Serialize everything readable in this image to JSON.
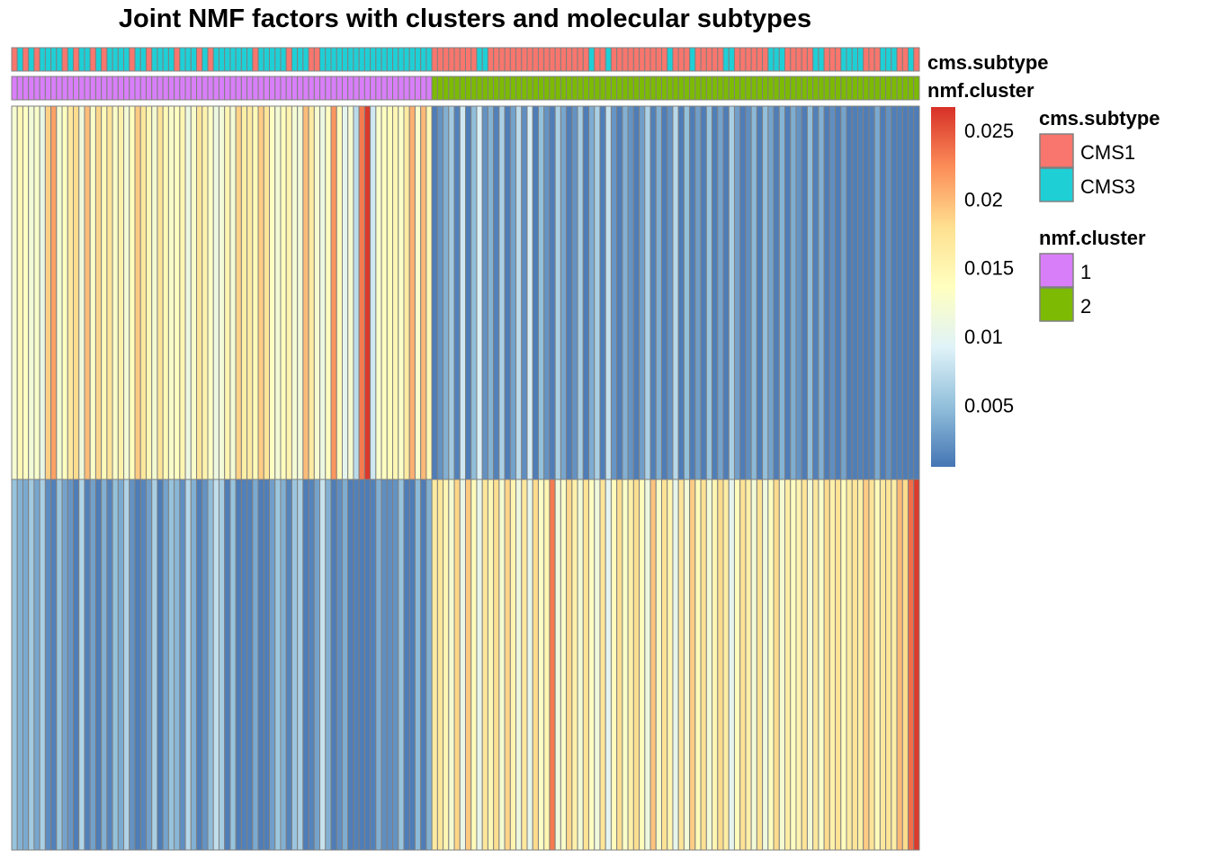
{
  "chart_data": {
    "type": "heatmap",
    "title": "Joint NMF factors with clusters and molecular subtypes",
    "n_samples": 162,
    "n_factors": 2,
    "annotation_tracks": [
      {
        "name": "cms.subtype",
        "levels": [
          "CMS1",
          "CMS3"
        ],
        "colors": [
          "#f8766d",
          "#1fcfd6"
        ]
      },
      {
        "name": "nmf.cluster",
        "levels": [
          "1",
          "2"
        ],
        "colors": [
          "#d97ef9",
          "#7cba04"
        ]
      }
    ],
    "cms_subtype": [
      "CMS1",
      "CMS3",
      "CMS1",
      "CMS3",
      "CMS1",
      "CMS3",
      "CMS3",
      "CMS3",
      "CMS3",
      "CMS1",
      "CMS3",
      "CMS1",
      "CMS3",
      "CMS3",
      "CMS1",
      "CMS3",
      "CMS1",
      "CMS3",
      "CMS3",
      "CMS3",
      "CMS3",
      "CMS1",
      "CMS3",
      "CMS3",
      "CMS1",
      "CMS3",
      "CMS3",
      "CMS3",
      "CMS3",
      "CMS1",
      "CMS3",
      "CMS3",
      "CMS3",
      "CMS1",
      "CMS3",
      "CMS1",
      "CMS3",
      "CMS3",
      "CMS3",
      "CMS3",
      "CMS3",
      "CMS3",
      "CMS3",
      "CMS1",
      "CMS3",
      "CMS3",
      "CMS3",
      "CMS3",
      "CMS3",
      "CMS1",
      "CMS3",
      "CMS3",
      "CMS3",
      "CMS1",
      "CMS1",
      "CMS3",
      "CMS3",
      "CMS3",
      "CMS3",
      "CMS3",
      "CMS3",
      "CMS3",
      "CMS3",
      "CMS3",
      "CMS3",
      "CMS3",
      "CMS3",
      "CMS3",
      "CMS3",
      "CMS3",
      "CMS3",
      "CMS3",
      "CMS3",
      "CMS3",
      "CMS3",
      "CMS1",
      "CMS1",
      "CMS1",
      "CMS1",
      "CMS1",
      "CMS1",
      "CMS1",
      "CMS1",
      "CMS3",
      "CMS3",
      "CMS1",
      "CMS1",
      "CMS1",
      "CMS1",
      "CMS1",
      "CMS1",
      "CMS1",
      "CMS1",
      "CMS1",
      "CMS1",
      "CMS1",
      "CMS1",
      "CMS1",
      "CMS1",
      "CMS1",
      "CMS1",
      "CMS1",
      "CMS1",
      "CMS3",
      "CMS1",
      "CMS1",
      "CMS3",
      "CMS1",
      "CMS1",
      "CMS1",
      "CMS1",
      "CMS1",
      "CMS1",
      "CMS1",
      "CMS1",
      "CMS1",
      "CMS1",
      "CMS3",
      "CMS1",
      "CMS1",
      "CMS1",
      "CMS3",
      "CMS1",
      "CMS1",
      "CMS1",
      "CMS1",
      "CMS1",
      "CMS3",
      "CMS3",
      "CMS1",
      "CMS1",
      "CMS1",
      "CMS1",
      "CMS1",
      "CMS1",
      "CMS3",
      "CMS3",
      "CMS3",
      "CMS1",
      "CMS1",
      "CMS1",
      "CMS1",
      "CMS1",
      "CMS3",
      "CMS3",
      "CMS1",
      "CMS1",
      "CMS1",
      "CMS3",
      "CMS3",
      "CMS3",
      "CMS3",
      "CMS1",
      "CMS1",
      "CMS1",
      "CMS3",
      "CMS3",
      "CMS3",
      "CMS1",
      "CMS1",
      "CMS3",
      "CMS1"
    ],
    "nmf_cluster": [
      "1",
      "1",
      "1",
      "1",
      "1",
      "1",
      "1",
      "1",
      "1",
      "1",
      "1",
      "1",
      "1",
      "1",
      "1",
      "1",
      "1",
      "1",
      "1",
      "1",
      "1",
      "1",
      "1",
      "1",
      "1",
      "1",
      "1",
      "1",
      "1",
      "1",
      "1",
      "1",
      "1",
      "1",
      "1",
      "1",
      "1",
      "1",
      "1",
      "1",
      "1",
      "1",
      "1",
      "1",
      "1",
      "1",
      "1",
      "1",
      "1",
      "1",
      "1",
      "1",
      "1",
      "1",
      "1",
      "1",
      "1",
      "1",
      "1",
      "1",
      "1",
      "1",
      "1",
      "1",
      "1",
      "1",
      "1",
      "1",
      "1",
      "1",
      "1",
      "1",
      "1",
      "1",
      "1",
      "2",
      "2",
      "2",
      "2",
      "2",
      "2",
      "2",
      "2",
      "2",
      "2",
      "2",
      "2",
      "2",
      "2",
      "2",
      "2",
      "2",
      "2",
      "2",
      "2",
      "2",
      "2",
      "2",
      "2",
      "2",
      "2",
      "2",
      "2",
      "2",
      "2",
      "2",
      "2",
      "2",
      "2",
      "2",
      "2",
      "2",
      "2",
      "2",
      "2",
      "2",
      "2",
      "2",
      "2",
      "2",
      "2",
      "2",
      "2",
      "2",
      "2",
      "2",
      "2",
      "2",
      "2",
      "2",
      "2",
      "2",
      "2",
      "2",
      "2",
      "2",
      "2",
      "2",
      "2",
      "2",
      "2",
      "2",
      "2",
      "2",
      "2",
      "2",
      "2",
      "2",
      "2",
      "2",
      "2",
      "2",
      "2",
      "2",
      "2",
      "2",
      "2",
      "2",
      "2",
      "2",
      "2",
      "2"
    ],
    "factor_values": [
      [
        0.0123,
        0.0145,
        0.0135,
        0.0118,
        0.0128,
        0.0108,
        0.0188,
        0.0213,
        0.0122,
        0.0136,
        0.0168,
        0.0182,
        0.0115,
        0.0198,
        0.013,
        0.0185,
        0.0142,
        0.0172,
        0.013,
        0.0156,
        0.012,
        0.0138,
        0.0191,
        0.0169,
        0.0147,
        0.0122,
        0.0172,
        0.0145,
        0.0129,
        0.0136,
        0.0148,
        0.011,
        0.0128,
        0.0172,
        0.0153,
        0.0132,
        0.0112,
        0.0118,
        0.015,
        0.012,
        0.0187,
        0.0159,
        0.0164,
        0.0143,
        0.019,
        0.0172,
        0.0133,
        0.012,
        0.0138,
        0.0151,
        0.0121,
        0.0118,
        0.0198,
        0.0165,
        0.0124,
        0.011,
        0.0135,
        0.0219,
        0.014,
        0.01,
        0.0123,
        0.0072,
        0.0232,
        0.0263,
        0.0083,
        0.0127,
        0.0135,
        0.0142,
        0.0148,
        0.0131,
        0.0164,
        0.0205,
        0.0128,
        0.02,
        0.0145,
        0.001,
        0.0022,
        0.004,
        0.0058,
        0.0012,
        0.0083,
        0.001,
        0.0048,
        0.009,
        0.0022,
        0.0041,
        0.0012,
        0.0063,
        0.001,
        0.0031,
        0.0072,
        0.002,
        0.0088,
        0.001,
        0.005,
        0.0023,
        0.001,
        0.0062,
        0.0034,
        0.001,
        0.0022,
        0.006,
        0.001,
        0.0038,
        0.0062,
        0.0011,
        0.0076,
        0.0024,
        0.001,
        0.004,
        0.0023,
        0.001,
        0.003,
        0.0063,
        0.0012,
        0.004,
        0.001,
        0.0022,
        0.007,
        0.001,
        0.005,
        0.001,
        0.003,
        0.001,
        0.0053,
        0.0011,
        0.0032,
        0.001,
        0.0062,
        0.003,
        0.001,
        0.002,
        0.0045,
        0.0011,
        0.005,
        0.0032,
        0.001,
        0.0042,
        0.001,
        0.0038,
        0.0023,
        0.001,
        0.0048,
        0.0012,
        0.004,
        0.001,
        0.002,
        0.001,
        0.0032,
        0.001,
        0.0011,
        0.0012,
        0.001,
        0.0012,
        0.0036,
        0.001,
        0.0022,
        0.0011,
        0.0012,
        0.001,
        0.0011,
        0.001
      ],
      [
        0.0052,
        0.0041,
        0.0036,
        0.0058,
        0.0034,
        0.0062,
        0.0018,
        0.0012,
        0.0054,
        0.0032,
        0.0024,
        0.001,
        0.0066,
        0.0012,
        0.0031,
        0.001,
        0.004,
        0.0014,
        0.005,
        0.0036,
        0.0065,
        0.0022,
        0.001,
        0.0015,
        0.003,
        0.0062,
        0.001,
        0.0032,
        0.0052,
        0.0044,
        0.002,
        0.0068,
        0.004,
        0.001,
        0.0022,
        0.0048,
        0.0075,
        0.006,
        0.001,
        0.0052,
        0.001,
        0.0012,
        0.0012,
        0.0036,
        0.001,
        0.0011,
        0.003,
        0.0055,
        0.004,
        0.0014,
        0.0054,
        0.0062,
        0.001,
        0.0014,
        0.0032,
        0.0078,
        0.004,
        0.001,
        0.002,
        0.0038,
        0.001,
        0.0012,
        0.001,
        0.001,
        0.0012,
        0.004,
        0.002,
        0.002,
        0.0022,
        0.0052,
        0.001,
        0.001,
        0.0046,
        0.001,
        0.004,
        0.0165,
        0.017,
        0.0148,
        0.0122,
        0.0185,
        0.0108,
        0.0192,
        0.0142,
        0.0104,
        0.017,
        0.0146,
        0.018,
        0.0122,
        0.0186,
        0.015,
        0.0112,
        0.0168,
        0.0102,
        0.0182,
        0.0132,
        0.0148,
        0.0232,
        0.0116,
        0.013,
        0.0184,
        0.0156,
        0.0118,
        0.0176,
        0.0135,
        0.0115,
        0.0172,
        0.0098,
        0.014,
        0.018,
        0.013,
        0.0158,
        0.018,
        0.014,
        0.0112,
        0.0195,
        0.013,
        0.0175,
        0.015,
        0.0102,
        0.0172,
        0.012,
        0.019,
        0.0142,
        0.0178,
        0.0118,
        0.0148,
        0.0182,
        0.0162,
        0.01,
        0.014,
        0.0175,
        0.0158,
        0.0118,
        0.0178,
        0.0112,
        0.0138,
        0.0182,
        0.0122,
        0.016,
        0.0135,
        0.015,
        0.0172,
        0.012,
        0.0168,
        0.0128,
        0.0182,
        0.0156,
        0.0176,
        0.0138,
        0.0164,
        0.0172,
        0.0158,
        0.019,
        0.0174,
        0.0142,
        0.0168,
        0.0172,
        0.016,
        0.02,
        0.0182,
        0.0238,
        0.0262
      ]
    ],
    "color_scale": {
      "min": 0.0005,
      "max": 0.0267,
      "colors": [
        "#4575b4",
        "#91bfdb",
        "#e0f3f8",
        "#ffffbf",
        "#fee090",
        "#fc8d59",
        "#d73027"
      ],
      "ticks": [
        "0.005",
        "0.01",
        "0.015",
        "0.02",
        "0.025"
      ],
      "tick_values": [
        0.005,
        0.01,
        0.015,
        0.02,
        0.025
      ]
    },
    "legend_position": "right"
  }
}
